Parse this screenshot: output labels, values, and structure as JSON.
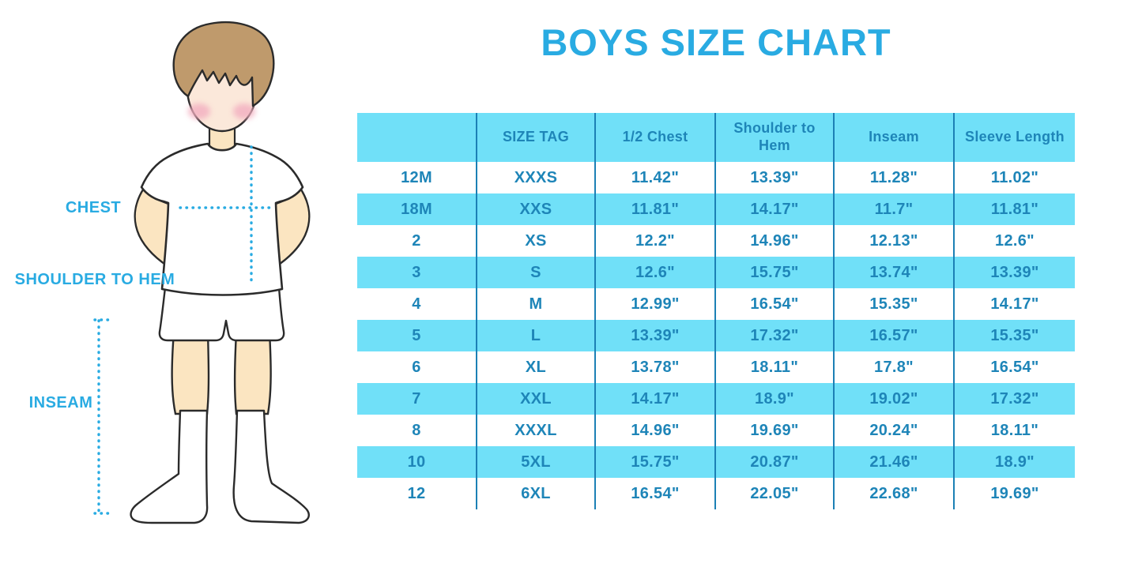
{
  "figure_labels": {
    "chest": "CHEST",
    "shoulder_to_hem": "SHOULDER TO HEM",
    "inseam": "INSEAM"
  },
  "colors": {
    "accent_blue": "#29ABE2",
    "row_cyan": "#70E0F8",
    "table_text_blue": "#1E85B8",
    "column_line_blue": "#1C80B5",
    "skin": "#FBE5C1",
    "hair_brown": "#BF9A6C",
    "cheek_pink": "#F3AEC0"
  },
  "chart_data": {
    "type": "table",
    "title": "BOYS SIZE CHART",
    "headers": [
      "",
      "SIZE TAG",
      "1/2 Chest",
      "Shoulder to Hem",
      "Inseam",
      "Sleeve Length"
    ],
    "rows": [
      [
        "12M",
        "XXXS",
        "11.42\"",
        "13.39\"",
        "11.28\"",
        "11.02\""
      ],
      [
        "18M",
        "XXS",
        "11.81\"",
        "14.17\"",
        "11.7\"",
        "11.81\""
      ],
      [
        "2",
        "XS",
        "12.2\"",
        "14.96\"",
        "12.13\"",
        "12.6\""
      ],
      [
        "3",
        "S",
        "12.6\"",
        "15.75\"",
        "13.74\"",
        "13.39\""
      ],
      [
        "4",
        "M",
        "12.99\"",
        "16.54\"",
        "15.35\"",
        "14.17\""
      ],
      [
        "5",
        "L",
        "13.39\"",
        "17.32\"",
        "16.57\"",
        "15.35\""
      ],
      [
        "6",
        "XL",
        "13.78\"",
        "18.11\"",
        "17.8\"",
        "16.54\""
      ],
      [
        "7",
        "XXL",
        "14.17\"",
        "18.9\"",
        "19.02\"",
        "17.32\""
      ],
      [
        "8",
        "XXXL",
        "14.96\"",
        "19.69\"",
        "20.24\"",
        "18.11\""
      ],
      [
        "10",
        "5XL",
        "15.75\"",
        "20.87\"",
        "21.46\"",
        "18.9\""
      ],
      [
        "12",
        "6XL",
        "16.54\"",
        "22.05\"",
        "22.68\"",
        "19.69\""
      ]
    ],
    "layout": {
      "row_striping": "alternating white and cyan, header cyan",
      "grid": "vertical column separators only, no outer border",
      "legend": "none"
    }
  }
}
